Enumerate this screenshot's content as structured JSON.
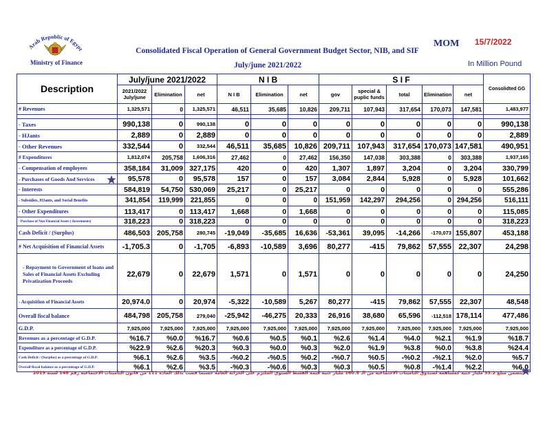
{
  "header": {
    "logo_text": "Arab Republic of Egypt",
    "ministry": "Ministry of Finance",
    "mom": "MOM",
    "date": "15/7/2022",
    "title": "Consolidated Fiscal Operation of General Government Budget Sector, NIB,  and SIF",
    "subtitle": "July/june 2021/2022",
    "unit": "In Million Pound"
  },
  "columns": {
    "description": "Description",
    "group1": "July/june 2021/2022",
    "group2": "N I B",
    "group3": "S I F",
    "consolidated": "Consolidted GG",
    "g1_sub1": "2021/2022 July/june",
    "g1_sub2": "Elimination",
    "g1_sub3": "net",
    "g2_sub1": "N I B",
    "g2_sub2": "Elimination",
    "g2_sub3": "net",
    "g3_sub1": "gov",
    "g3_sub2": "special & puplic funds",
    "g3_sub3": "total",
    "g3_sub4": "Elimination",
    "g3_sub5": "net"
  },
  "rows": [
    {
      "label": "#  Revenues",
      "values": [
        "1,325,571",
        "0",
        "1,325,571",
        "46,511",
        "35,685",
        "10,826",
        "209,711",
        "107,943",
        "317,654",
        "170,073",
        "147,581",
        "1,483,977"
      ],
      "small": [
        0,
        2,
        11
      ]
    },
    {
      "sep": true
    },
    {
      "label": "  - Taxes",
      "values": [
        "990,138",
        "0",
        "990,138",
        "0",
        "0",
        "0",
        "0",
        "0",
        "0",
        "0",
        "0",
        "990,138"
      ],
      "small": [
        2
      ]
    },
    {
      "label": "  - HJants",
      "values": [
        "2,889",
        "0",
        "2,889",
        "0",
        "0",
        "0",
        "0",
        "0",
        "0",
        "0",
        "0",
        "2,889"
      ],
      "small": []
    },
    {
      "label": "  - Other Revenues",
      "values": [
        "332,544",
        "0",
        "332,544",
        "46,511",
        "35,685",
        "10,826",
        "209,711",
        "107,943",
        "317,654",
        "170,073",
        "147,581",
        "490,951"
      ],
      "small": [
        2
      ]
    },
    {
      "label": "# Expenditures",
      "values": [
        "1,812,074",
        "205,758",
        "1,606,316",
        "27,462",
        "0",
        "27,462",
        "156,350",
        "147,038",
        "303,388",
        "0",
        "303,388",
        "1,937,165"
      ],
      "small": [
        0,
        2,
        11
      ]
    },
    {
      "label": "  - Compensation of employees",
      "values": [
        "358,184",
        "31,009",
        "327,175",
        "420",
        "0",
        "420",
        "1,307",
        "1,897",
        "3,204",
        "0",
        "3,204",
        "330,799"
      ],
      "small": []
    },
    {
      "label": "  - Purchases of Goods And Services",
      "values": [
        "95,578",
        "0",
        "95,578",
        "157",
        "0",
        "157",
        "3,084",
        "2,844",
        "5,928",
        "0",
        "5,928",
        "101,662"
      ],
      "small": []
    },
    {
      "label": "  - Interests",
      "values": [
        "584,819",
        "54,750",
        "530,069",
        "25,217",
        "0",
        "25,217",
        "0",
        "0",
        "0",
        "0",
        "0",
        "555,286"
      ],
      "small": []
    },
    {
      "label": "  - Subsidies, HJants, and Social Benefits",
      "values": [
        "341,854",
        "119,999",
        "221,855",
        "0",
        "0",
        "0",
        "151,959",
        "142,297",
        "294,256",
        "0",
        "294,256",
        "516,111"
      ],
      "small": []
    },
    {
      "label": "  - Other Expenditures",
      "values": [
        "113,417",
        "0",
        "113,417",
        "1,668",
        "0",
        "1,668",
        "0",
        "0",
        "0",
        "0",
        "0",
        "115,085"
      ],
      "small": []
    },
    {
      "label": "  - Purchase of Non Financial Assets ( Investments)",
      "values": [
        "318,223",
        "0",
        "318,223",
        "0",
        "0",
        "0",
        "0",
        "0",
        "0",
        "0",
        "0",
        "318,223"
      ],
      "small": []
    },
    {
      "label": "Cash Deficit / (Surplus)",
      "values": [
        "486,503",
        "205,758",
        "280,745",
        "-19,049",
        "-35,685",
        "16,636",
        "-53,361",
        "39,095",
        "-14,266",
        "-170,073",
        "155,807",
        "453,188"
      ],
      "small": [
        2,
        9
      ]
    },
    {
      "label": "#  Net Acquisition of Financial Assets",
      "values": [
        "-1,705.3",
        "0",
        "-1,705",
        "-6,893",
        "-10,589",
        "3,696",
        "80,277",
        "-415",
        "79,862",
        "57,555",
        "22,307",
        "24,298"
      ],
      "small": []
    },
    {
      "label": "     - Repayment to Government of loans and Sales of Financial Assets Excluding Privatization Proceeds",
      "values": [
        "22,679",
        "0",
        "22,679",
        "1,571",
        "0",
        "1,571",
        "0",
        "0",
        "0",
        "0",
        "0",
        "24,250"
      ],
      "small": [],
      "tall": true
    },
    {
      "label": "   - Acquisition of  Financial Assets",
      "values": [
        "20,974.0",
        "0",
        "20,974",
        "-5,322",
        "-10,589",
        "5,267",
        "80,277",
        "-415",
        "79,862",
        "57,555",
        "22,307",
        "48,548"
      ],
      "small": []
    },
    {
      "label": "Overall fiscal balance",
      "values": [
        "484,798",
        "205,758",
        "279,040",
        "-25,942",
        "-46,275",
        "20,333",
        "26,916",
        "38,680",
        "65,596",
        "-112,518",
        "178,114",
        "477,486"
      ],
      "small": [
        2,
        9
      ]
    },
    {
      "label": "G.D.P.",
      "values": [
        "7,925,000",
        "7,925,000",
        "7,925,000",
        "7,925,000",
        "7,925,000",
        "7,925,000",
        "7,925,000",
        "7,925,000",
        "7,925,000",
        "7,925,000",
        "7,925,000",
        "7,925,000"
      ],
      "small": [
        0,
        1,
        2,
        3,
        4,
        5,
        6,
        7,
        8,
        9,
        10,
        11
      ]
    },
    {
      "label": "Revenues  as a percentage of G.D.P.",
      "values": [
        "%16.7",
        "%0.0",
        "%16.7",
        "%0.6",
        "%0.5",
        "%0.1",
        "%2.6",
        "%1.4",
        "%4.0",
        "%2.1",
        "%1.9",
        "%18.7"
      ],
      "small": []
    },
    {
      "label": "Expenditure as a percentage of G.D.P.",
      "values": [
        "%22.9",
        "%2.6",
        "%20.3",
        "%0.3",
        "%0.0",
        "%0.3",
        "%2.0",
        "%1.9",
        "%3.8",
        "%0.0",
        "%3.8",
        "%24.4"
      ],
      "small": []
    },
    {
      "label": "Cash Deficit / (Surplus)  as a percentage of G.D.P.",
      "values": [
        "%6.1",
        "%2.6",
        "%3.5",
        "-%0.2",
        "-%0.5",
        "%0.2",
        "-%0.7",
        "%0.5",
        "-%0.2",
        "-%2.1",
        "%2.0",
        "%5.7"
      ],
      "small": []
    },
    {
      "label": "Overall fiscal balance as a percentage of G.D.P.",
      "values": [
        "%6.1",
        "%2.6",
        "%3.5",
        "-%0.3",
        "-%0.6",
        "%0.3",
        "%0.3",
        "%0.5",
        "%0.8",
        "-%1.4",
        "%2.2",
        "%6.0"
      ],
      "small": []
    }
  ],
  "footnote": "يتضمن  مبلغ 33.2 مليار جنيه كمساهمة لصندوق التأمينات الاجتماعية  من الـ 160.5 مليار جنيه قيمة القسط السنوي الملتزم على الخزانة العامة حسبما قضت بذلك المادة 111 من قانون التأمينات الاجتماعية رقم 148 لسنة 2019",
  "colors": {
    "title": "#1f2a8a",
    "accent_red": "#d21d1d",
    "border": "#2233a0",
    "star": "#4b3f8f"
  },
  "icons": [
    "emblem-logo",
    "star-icon"
  ]
}
